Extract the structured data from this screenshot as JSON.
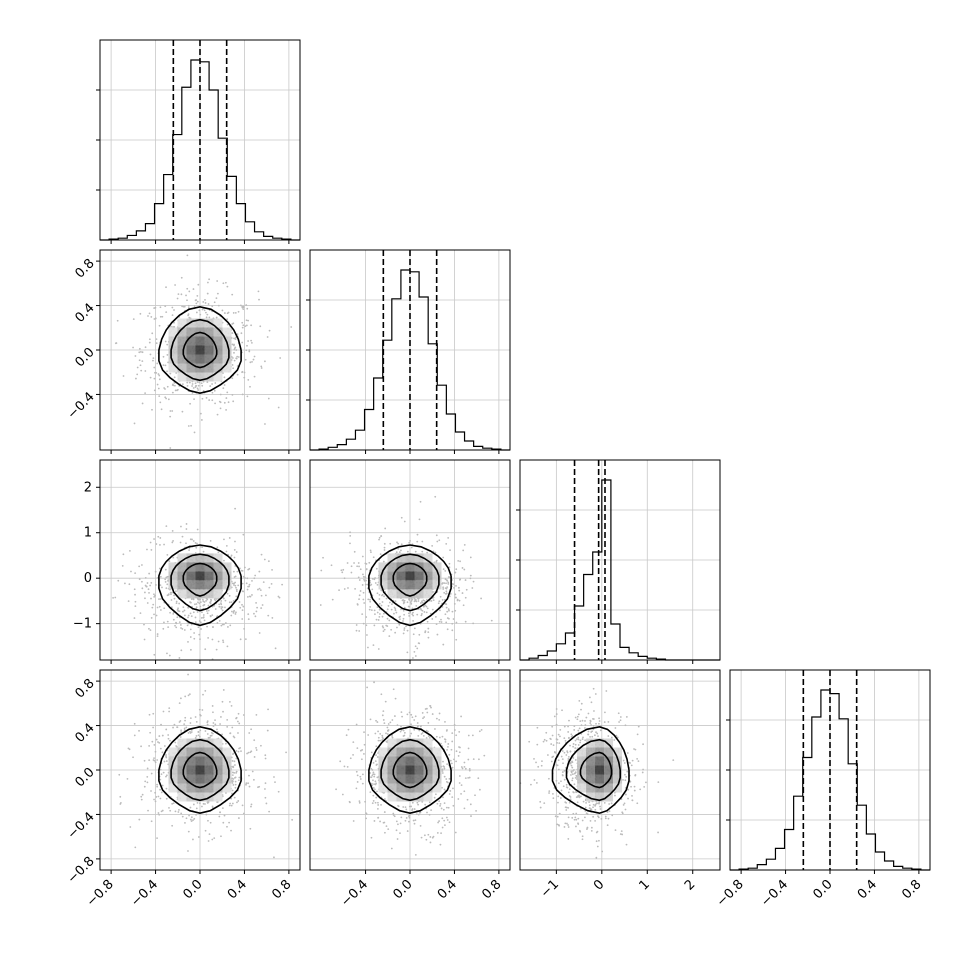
{
  "chart_data": {
    "type": "corner",
    "params": 4,
    "grid": true,
    "axis_ranges": [
      [
        -0.9,
        0.9
      ],
      [
        -0.9,
        0.9
      ],
      [
        -1.8,
        2.6
      ],
      [
        -0.9,
        0.9
      ]
    ],
    "ticks": [
      [
        -0.8,
        -0.4,
        0.0,
        0.4,
        0.8
      ],
      [
        -0.4,
        0.0,
        0.4,
        0.8
      ],
      [
        -1,
        0,
        1,
        2
      ],
      [
        -0.8,
        -0.4,
        0.0,
        0.4,
        0.8
      ]
    ],
    "tick_labels": [
      [
        "−0.8",
        "−0.4",
        "0.0",
        "0.4",
        "0.8"
      ],
      [
        "−0.4",
        "0.0",
        "0.4",
        "0.8"
      ],
      [
        "−1",
        "0",
        "1",
        "2"
      ],
      [
        "−0.8",
        "−0.4",
        "0.0",
        "0.4",
        "0.8"
      ]
    ],
    "bottom_tick_labels": [
      [
        "−0.8",
        "−0.4",
        "0.0",
        "0.4",
        "0.8"
      ],
      [
        "−0.4",
        "0.0",
        "0.4",
        "0.8"
      ],
      [
        "−1",
        "0",
        "1",
        "2"
      ],
      [
        "−0.8",
        "−0.4",
        "0.0",
        "0.4",
        "0.8"
      ]
    ],
    "quantiles": [
      [
        -0.24,
        0.0,
        0.24
      ],
      [
        -0.24,
        0.0,
        0.24
      ],
      [
        -0.6,
        -0.07,
        0.07
      ],
      [
        -0.24,
        0.0,
        0.24
      ]
    ],
    "histograms": [
      {
        "edges_range": [
          -0.9,
          0.9
        ],
        "counts": [
          0,
          1,
          2,
          5,
          10,
          18,
          40,
          72,
          116,
          168,
          198,
          196,
          165,
          112,
          70,
          40,
          20,
          9,
          4,
          2,
          1,
          0
        ]
      },
      {
        "edges_range": [
          -0.9,
          0.9
        ],
        "counts": [
          0,
          1,
          3,
          6,
          12,
          22,
          45,
          80,
          122,
          168,
          200,
          198,
          170,
          118,
          72,
          40,
          20,
          10,
          4,
          2,
          1,
          0
        ]
      },
      {
        "edges_range": [
          -1.8,
          2.6
        ],
        "counts": [
          0,
          2,
          5,
          10,
          18,
          30,
          60,
          95,
          120,
          200,
          40,
          14,
          8,
          4,
          2,
          1,
          0,
          0,
          0,
          0,
          0,
          0
        ]
      },
      {
        "edges_range": [
          -0.9,
          0.9
        ],
        "counts": [
          0,
          1,
          2,
          6,
          12,
          24,
          45,
          82,
          125,
          170,
          200,
          196,
          168,
          118,
          72,
          40,
          20,
          10,
          4,
          2,
          1,
          0
        ]
      }
    ],
    "pairs": [
      {
        "x_param": 0,
        "y_param": 1,
        "center": [
          0.0,
          0.0
        ],
        "sigma": [
          0.2,
          0.2
        ],
        "cov": 0.0
      },
      {
        "x_param": 0,
        "y_param": 2,
        "center": [
          0.0,
          0.05
        ],
        "sigma": [
          0.2,
          0.35
        ],
        "cov": 0.0,
        "skew": "down"
      },
      {
        "x_param": 1,
        "y_param": 2,
        "center": [
          0.0,
          0.05
        ],
        "sigma": [
          0.2,
          0.35
        ],
        "cov": 0.0,
        "skew": "down"
      },
      {
        "x_param": 0,
        "y_param": 3,
        "center": [
          0.0,
          0.0
        ],
        "sigma": [
          0.2,
          0.2
        ],
        "cov": 0.0
      },
      {
        "x_param": 1,
        "y_param": 3,
        "center": [
          0.0,
          0.0
        ],
        "sigma": [
          0.2,
          0.2
        ],
        "cov": 0.0
      },
      {
        "x_param": 2,
        "y_param": 3,
        "center": [
          -0.05,
          0.0
        ],
        "sigma": [
          0.35,
          0.2
        ],
        "cov": 0.0,
        "skew": "left"
      }
    ]
  }
}
